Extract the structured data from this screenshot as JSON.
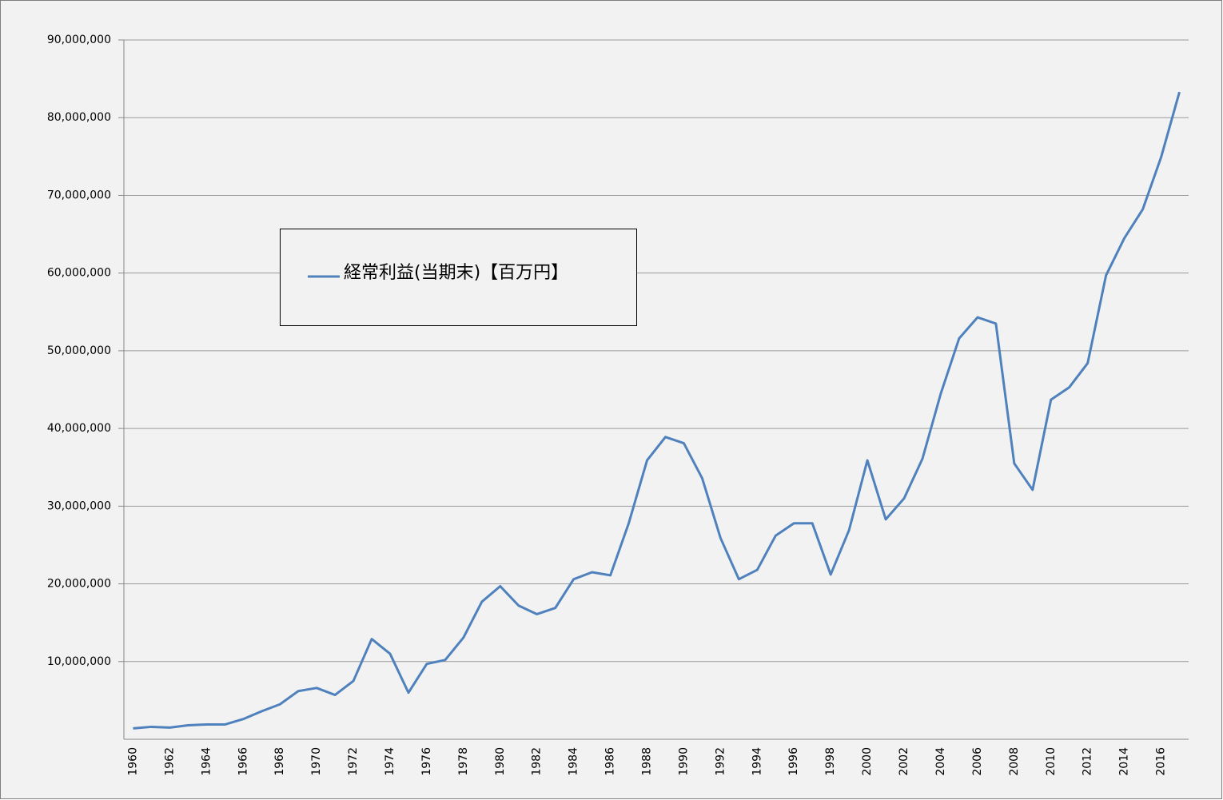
{
  "chart_data": {
    "type": "line",
    "categories": [
      "1960",
      null,
      "1962",
      null,
      "1964",
      null,
      "1966",
      null,
      "1968",
      null,
      "1970",
      null,
      "1972",
      null,
      "1974",
      null,
      "1976",
      null,
      "1978",
      null,
      "1980",
      null,
      "1982",
      null,
      "1984",
      null,
      "1986",
      null,
      "1988",
      null,
      "1990",
      null,
      "1992",
      null,
      "1994",
      null,
      "1996",
      null,
      "1998",
      null,
      "2000",
      null,
      "2002",
      null,
      "2004",
      null,
      "2006",
      null,
      "2008",
      null,
      "2010",
      null,
      "2012",
      null,
      "2014",
      null,
      "2016",
      null
    ],
    "series": [
      {
        "name": "経常利益(当期末)【百万円】",
        "color": "#4f81bd",
        "values": [
          1400000,
          1600000,
          1500000,
          1800000,
          1900000,
          1900000,
          2600000,
          3600000,
          4500000,
          6200000,
          6600000,
          5700000,
          7500000,
          12900000,
          11000000,
          6000000,
          9700000,
          10200000,
          13100000,
          17700000,
          19700000,
          17200000,
          16100000,
          16900000,
          20600000,
          21500000,
          21100000,
          27800000,
          35900000,
          38900000,
          38100000,
          33600000,
          25900000,
          20600000,
          21800000,
          26200000,
          27800000,
          27800000,
          21200000,
          26900000,
          35900000,
          28300000,
          31000000,
          36100000,
          44500000,
          51600000,
          54300000,
          53500000,
          35500000,
          32100000,
          43700000,
          45300000,
          48400000,
          59700000,
          64500000,
          68200000,
          74900000,
          83300000
        ]
      }
    ],
    "ylim": [
      0,
      90000000
    ],
    "yticks": [
      {
        "value": 10000000,
        "label": "10,000,000"
      },
      {
        "value": 20000000,
        "label": "20,000,000"
      },
      {
        "value": 30000000,
        "label": "30,000,000"
      },
      {
        "value": 40000000,
        "label": "40,000,000"
      },
      {
        "value": 50000000,
        "label": "50,000,000"
      },
      {
        "value": 60000000,
        "label": "60,000,000"
      },
      {
        "value": 70000000,
        "label": "70,000,000"
      },
      {
        "value": 80000000,
        "label": "80,000,000"
      },
      {
        "value": 90000000,
        "label": "90,000,000"
      }
    ],
    "grid": true
  }
}
